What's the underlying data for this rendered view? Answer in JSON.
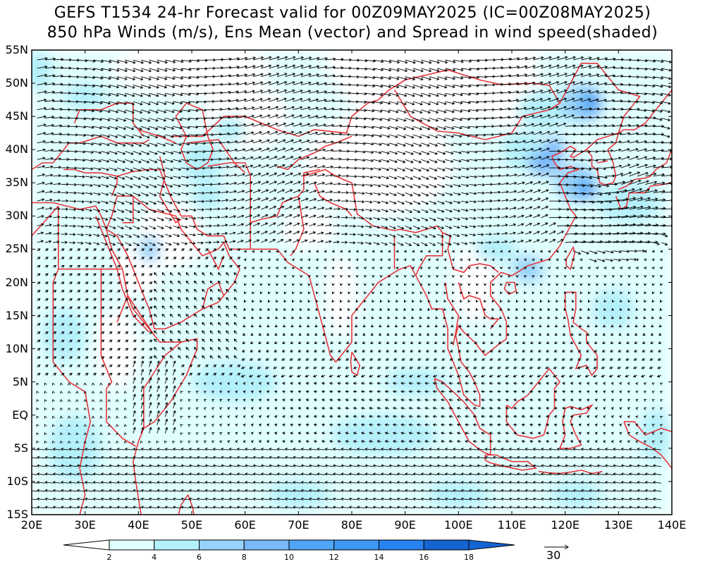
{
  "title_line1": "GEFS T1534 24-hr Forecast valid for 00Z09MAY2025 (IC=00Z08MAY2025)",
  "title_line2": "850 hPa Winds (m/s), Ens Mean (vector) and Spread in wind speed(shaded)",
  "map": {
    "lon_range": [
      20,
      140
    ],
    "lat_range": [
      -15,
      55
    ],
    "lat_labels": [
      "55N",
      "50N",
      "45N",
      "40N",
      "35N",
      "30N",
      "25N",
      "20N",
      "15N",
      "10N",
      "5N",
      "EQ",
      "5S",
      "10S",
      "15S"
    ],
    "lon_labels": [
      "20E",
      "30E",
      "40E",
      "50E",
      "60E",
      "70E",
      "80E",
      "90E",
      "100E",
      "110E",
      "120E",
      "130E",
      "140E"
    ],
    "coastline_color": "#e8343a",
    "frame_color": "#000000",
    "vector_color": "#000000"
  },
  "colorbar": {
    "levels": [
      "2",
      "4",
      "6",
      "8",
      "10",
      "12",
      "14",
      "16",
      "18"
    ],
    "colors": [
      "#ffffff",
      "#e0ffff",
      "#b4f0fa",
      "#96d2fa",
      "#78b9fa",
      "#50a5f5",
      "#3c97f5",
      "#2882f0",
      "#1464d2"
    ]
  },
  "reference_vector": {
    "label": "30"
  }
}
